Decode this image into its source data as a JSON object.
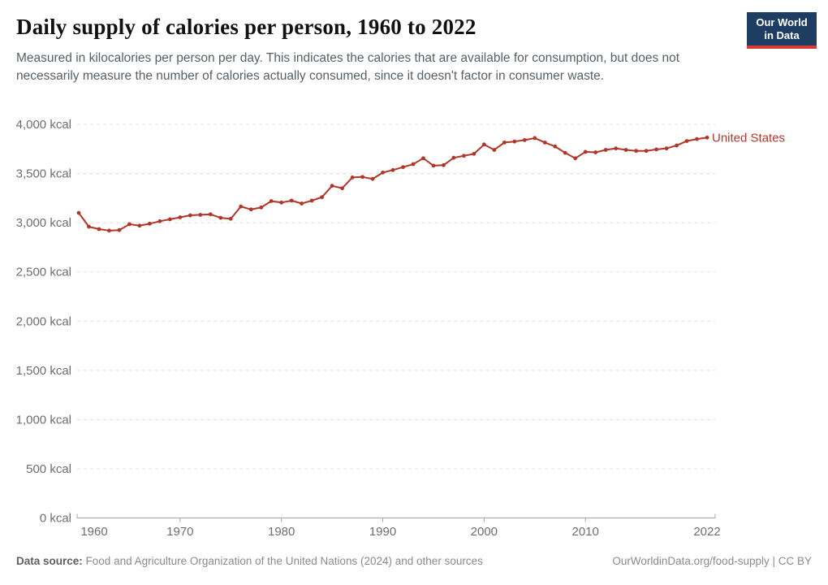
{
  "header": {
    "title": "Daily supply of calories per person, 1960 to 2022",
    "subtitle": "Measured in kilocalories per person per day. This indicates the calories that are available for consumption, but does not necessarily measure the number of calories actually consumed, since it doesn't factor in consumer waste.",
    "logo": {
      "line1": "Our World",
      "line2": "in Data",
      "bg_color": "#1d3d63",
      "bar_color": "#d63a33"
    }
  },
  "chart_data": {
    "type": "line",
    "title": "Daily supply of calories per person, 1960 to 2022",
    "xlabel": "",
    "ylabel": "kcal",
    "xlim": [
      1960,
      2022
    ],
    "ylim": [
      0,
      4000
    ],
    "x_ticks": [
      1960,
      1970,
      1980,
      1990,
      2000,
      2010,
      2022
    ],
    "y_ticks": [
      0,
      500,
      1000,
      1500,
      2000,
      2500,
      3000,
      3500,
      4000
    ],
    "y_tick_suffix": " kcal",
    "grid": "horizontal-dashed",
    "legend_position": "end-of-line-label",
    "x": [
      1960,
      1961,
      1962,
      1963,
      1964,
      1965,
      1966,
      1967,
      1968,
      1969,
      1970,
      1971,
      1972,
      1973,
      1974,
      1975,
      1976,
      1977,
      1978,
      1979,
      1980,
      1981,
      1982,
      1983,
      1984,
      1985,
      1986,
      1987,
      1988,
      1989,
      1990,
      1991,
      1992,
      1993,
      1994,
      1995,
      1996,
      1997,
      1998,
      1999,
      2000,
      2001,
      2002,
      2003,
      2004,
      2005,
      2006,
      2007,
      2008,
      2009,
      2010,
      2011,
      2012,
      2013,
      2014,
      2015,
      2016,
      2017,
      2018,
      2019,
      2020,
      2021,
      2022
    ],
    "series": [
      {
        "name": "United States",
        "color": "#b1362a",
        "values": [
          3100,
          2960,
          2935,
          2920,
          2925,
          2985,
          2970,
          2990,
          3015,
          3035,
          3055,
          3075,
          3080,
          3085,
          3050,
          3040,
          3165,
          3135,
          3155,
          3220,
          3205,
          3225,
          3195,
          3225,
          3260,
          3375,
          3350,
          3460,
          3465,
          3445,
          3510,
          3535,
          3565,
          3595,
          3655,
          3580,
          3585,
          3660,
          3680,
          3700,
          3795,
          3740,
          3815,
          3825,
          3840,
          3860,
          3815,
          3775,
          3710,
          3655,
          3720,
          3715,
          3740,
          3755,
          3740,
          3730,
          3730,
          3745,
          3755,
          3785,
          3830,
          3850,
          3865
        ]
      }
    ]
  },
  "footer": {
    "source_label": "Data source:",
    "source_text": "Food and Agriculture Organization of the United Nations (2024) and other sources",
    "link_text": "OurWorldinData.org/food-supply | CC BY"
  }
}
